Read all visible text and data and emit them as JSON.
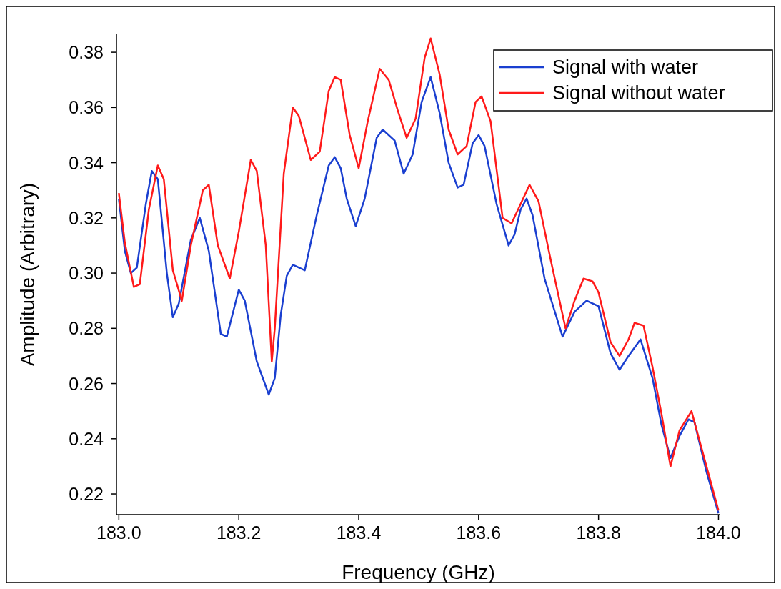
{
  "chart_data": {
    "type": "line",
    "xlabel": "Frequency (GHz)",
    "ylabel": "Amplitude (Arbitrary)",
    "xlim": [
      182.996,
      184.003
    ],
    "ylim": [
      0.2125,
      0.3865
    ],
    "xticks": [
      {
        "value": 183.0,
        "label": "183.0"
      },
      {
        "value": 183.2,
        "label": "183.2"
      },
      {
        "value": 183.4,
        "label": "183.4"
      },
      {
        "value": 183.6,
        "label": "183.6"
      },
      {
        "value": 183.8,
        "label": "183.8"
      },
      {
        "value": 184.0,
        "label": "184.0"
      }
    ],
    "yticks": [
      0.22,
      0.24,
      0.26,
      0.28,
      {
        "value": 0.3,
        "label": "0.30"
      },
      0.32,
      0.34,
      0.36,
      0.38
    ],
    "legend": "top right",
    "grid": false,
    "line_style": "solid",
    "marker": "none",
    "series": [
      {
        "name": "Signal with water",
        "color": "#1a3fd0",
        "x": [
          183.0,
          183.01,
          183.02,
          183.03,
          183.045,
          183.055,
          183.065,
          183.08,
          183.09,
          183.1,
          183.12,
          183.135,
          183.15,
          183.17,
          183.18,
          183.2,
          183.21,
          183.23,
          183.25,
          183.26,
          183.27,
          183.28,
          183.29,
          183.31,
          183.33,
          183.35,
          183.36,
          183.37,
          183.38,
          183.395,
          183.41,
          183.43,
          183.44,
          183.46,
          183.475,
          183.49,
          183.505,
          183.52,
          183.535,
          183.55,
          183.565,
          183.575,
          183.59,
          183.6,
          183.61,
          183.63,
          183.65,
          183.66,
          183.67,
          183.68,
          183.69,
          183.71,
          183.74,
          183.76,
          183.78,
          183.8,
          183.82,
          183.835,
          183.85,
          183.87,
          183.89,
          183.905,
          183.92,
          183.935,
          183.95,
          183.96,
          183.98,
          184.0
        ],
        "values": [
          0.327,
          0.308,
          0.3,
          0.302,
          0.325,
          0.337,
          0.334,
          0.3,
          0.284,
          0.289,
          0.312,
          0.32,
          0.308,
          0.278,
          0.277,
          0.294,
          0.29,
          0.268,
          0.256,
          0.262,
          0.285,
          0.299,
          0.303,
          0.301,
          0.321,
          0.339,
          0.342,
          0.338,
          0.327,
          0.317,
          0.327,
          0.349,
          0.352,
          0.348,
          0.336,
          0.343,
          0.362,
          0.371,
          0.358,
          0.34,
          0.331,
          0.332,
          0.347,
          0.35,
          0.346,
          0.325,
          0.31,
          0.314,
          0.323,
          0.327,
          0.321,
          0.298,
          0.277,
          0.286,
          0.29,
          0.288,
          0.271,
          0.265,
          0.27,
          0.276,
          0.262,
          0.245,
          0.233,
          0.241,
          0.247,
          0.246,
          0.228,
          0.213
        ]
      },
      {
        "name": "Signal without water",
        "color": "#ff1a1a",
        "x": [
          183.0,
          183.01,
          183.025,
          183.035,
          183.05,
          183.065,
          183.075,
          183.09,
          183.105,
          183.12,
          183.14,
          183.15,
          183.165,
          183.185,
          183.2,
          183.22,
          183.23,
          183.245,
          183.255,
          183.26,
          183.275,
          183.29,
          183.3,
          183.32,
          183.335,
          183.35,
          183.36,
          183.37,
          183.385,
          183.4,
          183.415,
          183.435,
          183.45,
          183.465,
          183.48,
          183.495,
          183.51,
          183.52,
          183.535,
          183.55,
          183.565,
          183.58,
          183.595,
          183.605,
          183.62,
          183.64,
          183.655,
          183.67,
          183.685,
          183.7,
          183.72,
          183.745,
          183.76,
          183.775,
          183.79,
          183.8,
          183.82,
          183.835,
          183.85,
          183.86,
          183.875,
          183.89,
          183.905,
          183.92,
          183.935,
          183.955,
          183.97,
          183.99,
          184.0
        ],
        "values": [
          0.329,
          0.311,
          0.295,
          0.296,
          0.323,
          0.339,
          0.334,
          0.301,
          0.29,
          0.31,
          0.33,
          0.332,
          0.31,
          0.298,
          0.315,
          0.341,
          0.337,
          0.31,
          0.268,
          0.28,
          0.336,
          0.36,
          0.357,
          0.341,
          0.344,
          0.366,
          0.371,
          0.37,
          0.35,
          0.338,
          0.355,
          0.374,
          0.37,
          0.359,
          0.349,
          0.356,
          0.378,
          0.385,
          0.372,
          0.352,
          0.343,
          0.346,
          0.362,
          0.364,
          0.355,
          0.32,
          0.318,
          0.325,
          0.332,
          0.326,
          0.305,
          0.28,
          0.29,
          0.298,
          0.297,
          0.293,
          0.275,
          0.27,
          0.276,
          0.282,
          0.281,
          0.266,
          0.249,
          0.23,
          0.243,
          0.25,
          0.238,
          0.222,
          0.214
        ]
      }
    ]
  }
}
